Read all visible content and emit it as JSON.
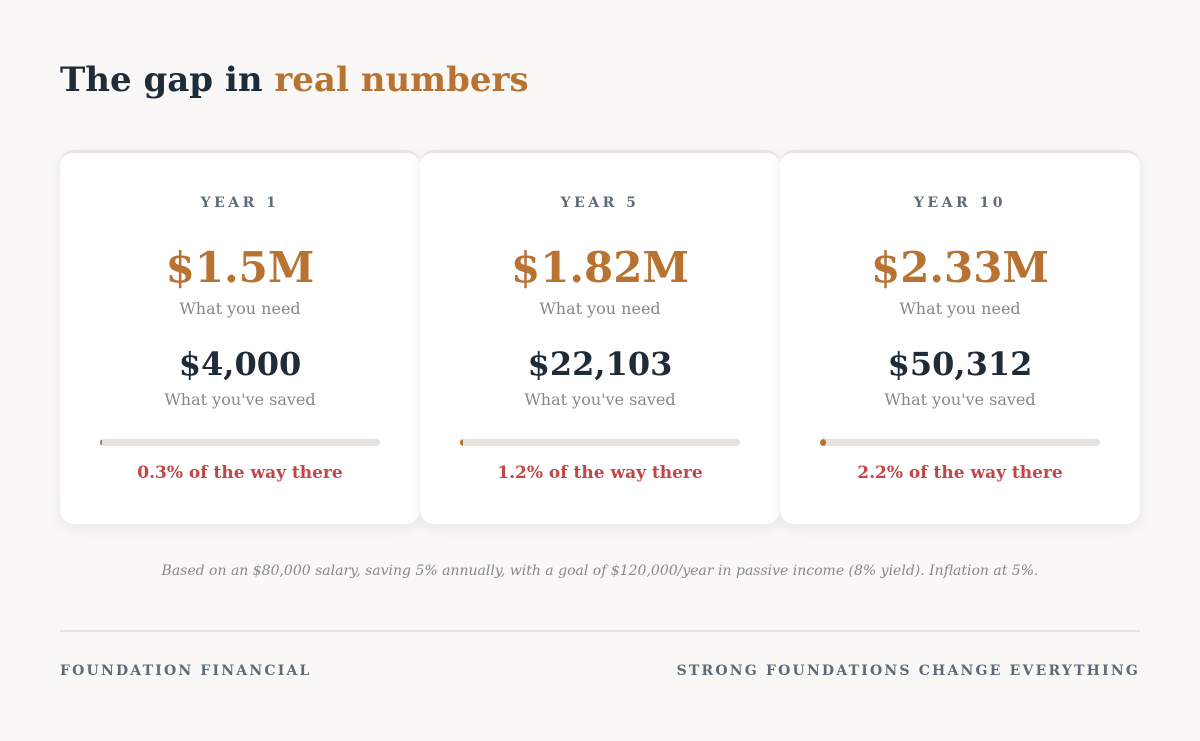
{
  "header": {
    "title_prefix": "The gap in ",
    "title_accent": "real numbers"
  },
  "cards": [
    {
      "label": "YEAR 1",
      "need": "$1.5M",
      "need_label": "What you need",
      "saved": "$4,000",
      "saved_label": "What you've saved",
      "progress_pct": 0.3,
      "progress_text": "0.3% of the way there"
    },
    {
      "label": "YEAR 5",
      "need": "$1.82M",
      "need_label": "What you need",
      "saved": "$22,103",
      "saved_label": "What you've saved",
      "progress_pct": 1.2,
      "progress_text": "1.2% of the way there"
    },
    {
      "label": "YEAR 10",
      "need": "$2.33M",
      "need_label": "What you need",
      "saved": "$50,312",
      "saved_label": "What you've saved",
      "progress_pct": 2.2,
      "progress_text": "2.2% of the way there"
    }
  ],
  "footnote": "Based on an $80,000 salary, saving 5% annually, with a goal of $120,000/year in passive income (8% yield). Inflation at 5%.",
  "footer": {
    "brand": "FOUNDATION FINANCIAL",
    "tagline": "STRONG FOUNDATIONS CHANGE EVERYTHING"
  },
  "colors": {
    "accent": "#b87333",
    "navy": "#1e2b38",
    "alert": "#c44545",
    "muted": "#5d6b78",
    "track": "#e7e4df",
    "background": "#f9f8f6"
  }
}
